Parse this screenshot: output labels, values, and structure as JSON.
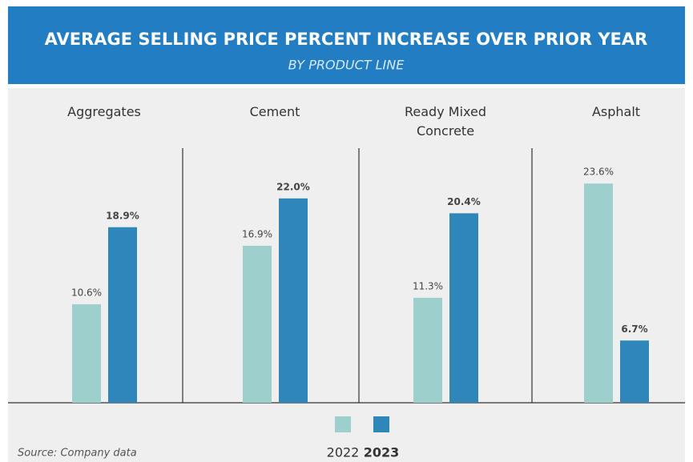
{
  "chart_data": {
    "type": "bar",
    "title": "AVERAGE SELLING PRICE PERCENT INCREASE OVER PRIOR YEAR",
    "subtitle": "BY PRODUCT LINE",
    "categories": [
      "Aggregates",
      "Cement",
      "Ready Mixed Concrete",
      "Asphalt"
    ],
    "series": [
      {
        "name": "2022",
        "color": "#9dcfcc",
        "values": [
          10.6,
          16.9,
          11.3,
          23.6
        ],
        "value_labels": [
          "10.6%",
          "16.9%",
          "11.3%",
          "23.6%"
        ]
      },
      {
        "name": "2023",
        "color": "#2e86b9",
        "values": [
          18.9,
          22.0,
          20.4,
          6.7
        ],
        "value_labels": [
          "18.9%",
          "22.0%",
          "20.4%",
          "6.7%"
        ]
      }
    ],
    "ylim": [
      0,
      30
    ],
    "source": "Source: Company data"
  }
}
